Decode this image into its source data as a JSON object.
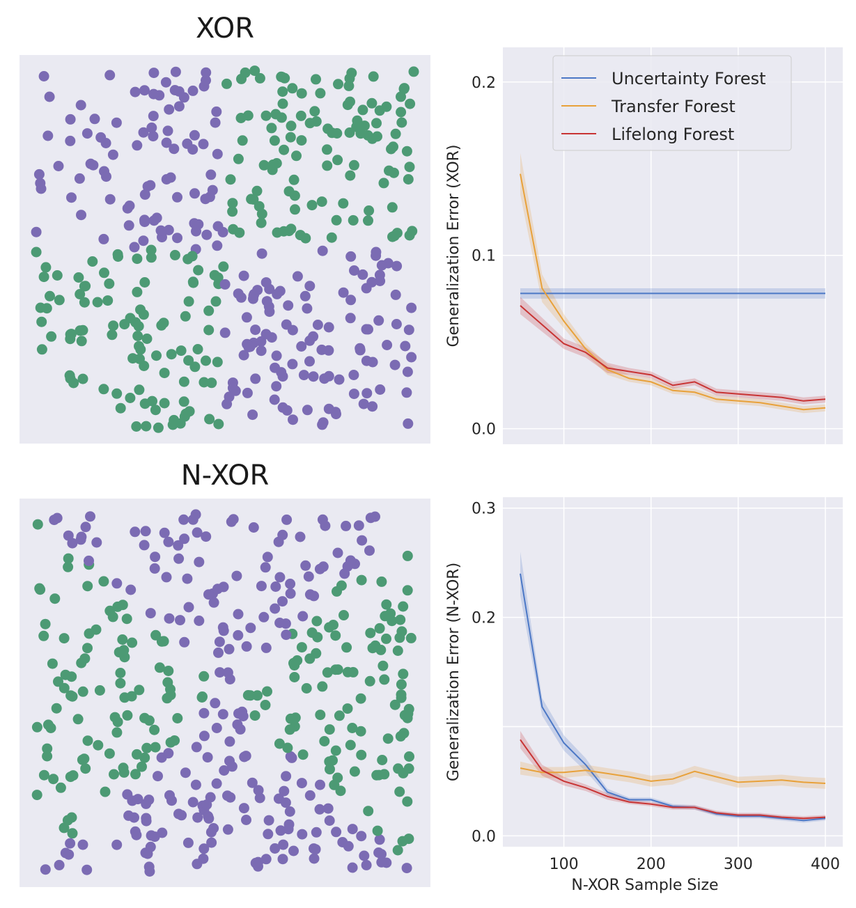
{
  "colors": {
    "background": "#eaeaf2",
    "grid": "#ffffff",
    "class_a": "#7b6bb3",
    "class_b": "#4c9a74",
    "uncertainty": "#4c78c6",
    "transfer": "#e8a13a",
    "lifelong": "#c83434"
  },
  "scatter_panels": [
    {
      "title": "XOR",
      "pattern": "xor"
    },
    {
      "title": "N-XOR",
      "pattern": "nxor"
    }
  ],
  "chart_data": [
    {
      "type": "line",
      "ylabel": "Generalization Error (XOR)",
      "xlabel": "",
      "xlim": [
        30,
        420
      ],
      "ylim": [
        -0.009,
        0.22
      ],
      "yticks": [
        0.0,
        0.1,
        0.2
      ],
      "ytick_labels": [
        "0.0",
        "0.1",
        "0.2"
      ],
      "xticks": [
        100,
        200,
        300,
        400
      ],
      "xtick_labels": [],
      "grid": true,
      "legend": "top-center",
      "x": [
        50,
        75,
        100,
        125,
        150,
        175,
        200,
        225,
        250,
        275,
        300,
        325,
        350,
        375,
        400
      ],
      "series": [
        {
          "name": "Uncertainty Forest",
          "color_key": "uncertainty",
          "values": [
            0.078,
            0.078,
            0.078,
            0.078,
            0.078,
            0.078,
            0.078,
            0.078,
            0.078,
            0.078,
            0.078,
            0.078,
            0.078,
            0.078,
            0.078
          ],
          "band": [
            0.003,
            0.003,
            0.003,
            0.003,
            0.003,
            0.003,
            0.003,
            0.003,
            0.003,
            0.003,
            0.003,
            0.003,
            0.003,
            0.003,
            0.003
          ]
        },
        {
          "name": "Transfer Forest",
          "color_key": "transfer",
          "values": [
            0.147,
            0.081,
            0.062,
            0.046,
            0.034,
            0.029,
            0.027,
            0.022,
            0.021,
            0.017,
            0.016,
            0.015,
            0.013,
            0.011,
            0.012
          ],
          "band": [
            0.012,
            0.008,
            0.004,
            0.003,
            0.003,
            0.002,
            0.002,
            0.002,
            0.002,
            0.002,
            0.002,
            0.002,
            0.002,
            0.002,
            0.002
          ]
        },
        {
          "name": "Lifelong Forest",
          "color_key": "lifelong",
          "values": [
            0.071,
            0.06,
            0.049,
            0.044,
            0.035,
            0.033,
            0.031,
            0.025,
            0.027,
            0.021,
            0.02,
            0.019,
            0.018,
            0.016,
            0.017
          ],
          "band": [
            0.005,
            0.004,
            0.003,
            0.003,
            0.003,
            0.002,
            0.002,
            0.002,
            0.002,
            0.002,
            0.002,
            0.002,
            0.002,
            0.002,
            0.002
          ]
        }
      ]
    },
    {
      "type": "line",
      "ylabel": "Generalization Error (N-XOR)",
      "xlabel": "N-XOR Sample Size",
      "xlim": [
        30,
        420
      ],
      "ylim": [
        -0.01,
        0.31
      ],
      "yticks": [
        0.0,
        0.2,
        0.3
      ],
      "ytick_labels": [
        "0.0",
        "0.2",
        "0.3"
      ],
      "extra_gridlines": [
        0.1
      ],
      "xticks": [
        100,
        200,
        300,
        400
      ],
      "xtick_labels": [
        "100",
        "200",
        "300",
        "400"
      ],
      "grid": true,
      "x": [
        50,
        75,
        100,
        125,
        150,
        175,
        200,
        225,
        250,
        275,
        300,
        325,
        350,
        375,
        400
      ],
      "series": [
        {
          "name": "Uncertainty Forest",
          "color_key": "uncertainty",
          "values": [
            0.24,
            0.118,
            0.085,
            0.065,
            0.04,
            0.033,
            0.033,
            0.027,
            0.026,
            0.02,
            0.018,
            0.018,
            0.016,
            0.014,
            0.016
          ],
          "band": [
            0.02,
            0.008,
            0.007,
            0.006,
            0.003,
            0.002,
            0.002,
            0.002,
            0.002,
            0.002,
            0.002,
            0.002,
            0.002,
            0.002,
            0.002
          ]
        },
        {
          "name": "Transfer Forest",
          "color_key": "transfer",
          "values": [
            0.062,
            0.058,
            0.058,
            0.06,
            0.057,
            0.054,
            0.05,
            0.052,
            0.059,
            0.054,
            0.049,
            0.05,
            0.051,
            0.049,
            0.048
          ],
          "band": [
            0.006,
            0.005,
            0.005,
            0.005,
            0.005,
            0.005,
            0.005,
            0.005,
            0.005,
            0.005,
            0.005,
            0.005,
            0.005,
            0.005,
            0.005
          ]
        },
        {
          "name": "Lifelong Forest",
          "color_key": "lifelong",
          "values": [
            0.088,
            0.06,
            0.05,
            0.044,
            0.036,
            0.031,
            0.029,
            0.026,
            0.026,
            0.021,
            0.019,
            0.019,
            0.017,
            0.016,
            0.017
          ],
          "band": [
            0.008,
            0.005,
            0.004,
            0.003,
            0.003,
            0.002,
            0.002,
            0.002,
            0.002,
            0.002,
            0.002,
            0.002,
            0.002,
            0.002,
            0.002
          ]
        }
      ]
    }
  ]
}
